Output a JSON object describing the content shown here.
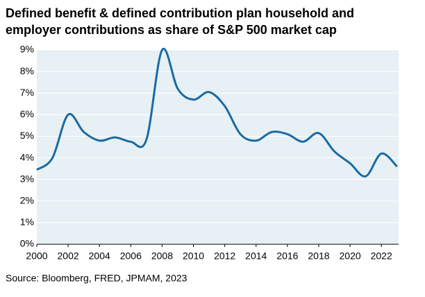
{
  "chart_data": {
    "type": "line",
    "title": [
      "Defined benefit & defined contribution plan household and",
      "employer contributions as share of S&P 500 market cap"
    ],
    "source": "Source: Bloomberg, FRED, JPMAM, 2023",
    "x": [
      2000,
      2001,
      2002,
      2003,
      2004,
      2005,
      2006,
      2007,
      2008,
      2009,
      2010,
      2011,
      2012,
      2013,
      2014,
      2015,
      2016,
      2017,
      2018,
      2019,
      2020,
      2021,
      2022,
      2023
    ],
    "series": [
      {
        "color": "#1a6aa3",
        "values": [
          3.45,
          4.0,
          6.0,
          5.2,
          4.8,
          4.95,
          4.75,
          4.85,
          9.0,
          7.2,
          6.7,
          7.05,
          6.4,
          5.1,
          4.8,
          5.2,
          5.1,
          4.75,
          5.15,
          4.3,
          3.75,
          3.15,
          4.2,
          3.6
        ]
      }
    ],
    "xlim": [
      2000,
      2023.1
    ],
    "xticks": [
      2000,
      2002,
      2004,
      2006,
      2008,
      2010,
      2012,
      2014,
      2016,
      2018,
      2020,
      2022
    ],
    "ylim": [
      0,
      9
    ],
    "yticks": [
      {
        "value": 0,
        "label": "0%"
      },
      {
        "value": 1,
        "label": "1%"
      },
      {
        "value": 2,
        "label": "2%"
      },
      {
        "value": 3,
        "label": "3%"
      },
      {
        "value": 4,
        "label": "4%"
      },
      {
        "value": 5,
        "label": "5%"
      },
      {
        "value": 6,
        "label": "6%"
      },
      {
        "value": 7,
        "label": "7%"
      },
      {
        "value": 8,
        "label": "8%"
      },
      {
        "value": 9,
        "label": "9%"
      }
    ],
    "grid": true
  }
}
